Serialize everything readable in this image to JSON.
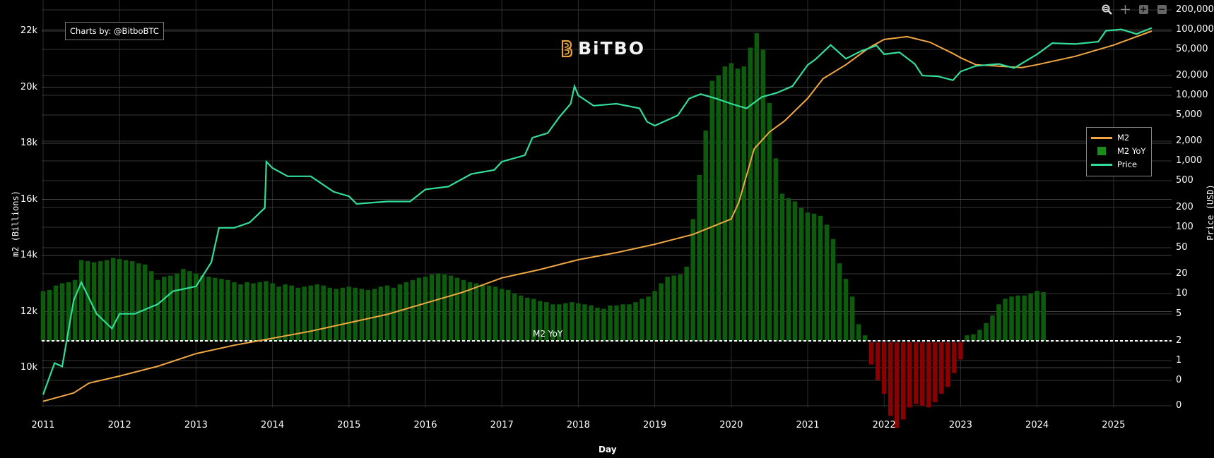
{
  "modebar": {
    "buttons": [
      {
        "name": "zoom-icon",
        "glyph": "⊕"
      },
      {
        "name": "pan-icon",
        "glyph": "✛"
      },
      {
        "name": "zoom-in-icon",
        "glyph": "+"
      },
      {
        "name": "zoom-out-icon",
        "glyph": "−"
      }
    ]
  },
  "credit": "Charts by: @BitboBTC",
  "logo": {
    "text": "BiTBO",
    "accent": "#e8a33d"
  },
  "legend": {
    "items": [
      {
        "label": "M2",
        "color": "#f0a742",
        "type": "line"
      },
      {
        "label": "M2 YoY",
        "color": "#1a8c1a",
        "type": "bar"
      },
      {
        "label": "Price",
        "color": "#33dd99",
        "type": "line"
      }
    ]
  },
  "axes": {
    "left_title": "m2 (Billions)",
    "right_title": "Price (USD)",
    "x_title": "Day"
  },
  "reference_label": "M2 YoY",
  "colors": {
    "background": "#000000",
    "grid": "#3a3a3a",
    "m2": "#f0a742",
    "price": "#33dd99",
    "yoy_pos": "#0d5c0d",
    "yoy_neg": "#8b0000",
    "dashed": "#ffffff"
  },
  "chart_data": {
    "type": "line+bar",
    "title": "",
    "xlabel": "Day",
    "ylabel_left": "m2 (Billions)",
    "ylabel_right": "Price (USD)",
    "x_ticks": [
      "2011",
      "2012",
      "2013",
      "2014",
      "2015",
      "2016",
      "2017",
      "2018",
      "2019",
      "2020",
      "2021",
      "2022",
      "2023",
      "2024",
      "2025"
    ],
    "left_ticks": [
      "10k",
      "12k",
      "14k",
      "16k",
      "18k",
      "20k",
      "22k"
    ],
    "right_ticks": [
      "0",
      "0",
      "1",
      "2",
      "5",
      "10",
      "20",
      "50",
      "100",
      "200",
      "500",
      "1,000",
      "2,000",
      "5,000",
      "10,000",
      "20,000",
      "50,000",
      "100,000",
      "200,000"
    ],
    "ylim_left": [
      8800,
      22400
    ],
    "right_scale": "log",
    "grid": true,
    "legend_position": "right-inside",
    "series": [
      {
        "name": "M2",
        "axis": "left",
        "points": [
          [
            2011.0,
            8.8
          ],
          [
            2011.4,
            9.1
          ],
          [
            2011.6,
            9.45
          ],
          [
            2012.0,
            9.7
          ],
          [
            2012.5,
            10.05
          ],
          [
            2013.0,
            10.5
          ],
          [
            2013.5,
            10.8
          ],
          [
            2014.0,
            11.05
          ],
          [
            2014.5,
            11.3
          ],
          [
            2015.0,
            11.6
          ],
          [
            2015.5,
            11.9
          ],
          [
            2016.0,
            12.3
          ],
          [
            2016.5,
            12.7
          ],
          [
            2017.0,
            13.2
          ],
          [
            2017.5,
            13.5
          ],
          [
            2018.0,
            13.85
          ],
          [
            2018.5,
            14.1
          ],
          [
            2019.0,
            14.4
          ],
          [
            2019.5,
            14.75
          ],
          [
            2020.0,
            15.3
          ],
          [
            2020.1,
            15.9
          ],
          [
            2020.3,
            17.8
          ],
          [
            2020.5,
            18.4
          ],
          [
            2020.7,
            18.8
          ],
          [
            2021.0,
            19.6
          ],
          [
            2021.2,
            20.3
          ],
          [
            2021.5,
            20.8
          ],
          [
            2021.8,
            21.4
          ],
          [
            2022.0,
            21.7
          ],
          [
            2022.3,
            21.8
          ],
          [
            2022.6,
            21.6
          ],
          [
            2022.9,
            21.2
          ],
          [
            2023.0,
            21.05
          ],
          [
            2023.2,
            20.8
          ],
          [
            2023.5,
            20.75
          ],
          [
            2023.8,
            20.7
          ],
          [
            2024.0,
            20.8
          ],
          [
            2024.5,
            21.1
          ],
          [
            2025.0,
            21.5
          ],
          [
            2025.5,
            22.0
          ]
        ]
      },
      {
        "name": "Price",
        "axis": "right",
        "points": [
          [
            2011.0,
            0.3
          ],
          [
            2011.15,
            0.9
          ],
          [
            2011.25,
            0.8
          ],
          [
            2011.4,
            8
          ],
          [
            2011.5,
            15
          ],
          [
            2011.7,
            5
          ],
          [
            2011.9,
            3
          ],
          [
            2012.0,
            5
          ],
          [
            2012.2,
            5
          ],
          [
            2012.5,
            7
          ],
          [
            2012.7,
            11
          ],
          [
            2013.0,
            13
          ],
          [
            2013.2,
            30
          ],
          [
            2013.3,
            100
          ],
          [
            2013.5,
            100
          ],
          [
            2013.7,
            120
          ],
          [
            2013.9,
            200
          ],
          [
            2013.92,
            1000
          ],
          [
            2014.0,
            800
          ],
          [
            2014.2,
            600
          ],
          [
            2014.5,
            600
          ],
          [
            2014.8,
            350
          ],
          [
            2015.0,
            300
          ],
          [
            2015.1,
            230
          ],
          [
            2015.5,
            250
          ],
          [
            2015.8,
            250
          ],
          [
            2016.0,
            380
          ],
          [
            2016.3,
            420
          ],
          [
            2016.6,
            650
          ],
          [
            2016.9,
            750
          ],
          [
            2017.0,
            1000
          ],
          [
            2017.3,
            1250
          ],
          [
            2017.4,
            2300
          ],
          [
            2017.6,
            2700
          ],
          [
            2017.75,
            4700
          ],
          [
            2017.9,
            7500
          ],
          [
            2017.95,
            13800
          ],
          [
            2018.0,
            10000
          ],
          [
            2018.2,
            7000
          ],
          [
            2018.5,
            7500
          ],
          [
            2018.8,
            6400
          ],
          [
            2018.9,
            4000
          ],
          [
            2019.0,
            3500
          ],
          [
            2019.3,
            5000
          ],
          [
            2019.45,
            9000
          ],
          [
            2019.6,
            10500
          ],
          [
            2019.8,
            9000
          ],
          [
            2020.0,
            7500
          ],
          [
            2020.2,
            6400
          ],
          [
            2020.4,
            9500
          ],
          [
            2020.6,
            11000
          ],
          [
            2020.8,
            13800
          ],
          [
            2021.0,
            29000
          ],
          [
            2021.1,
            35000
          ],
          [
            2021.3,
            58000
          ],
          [
            2021.5,
            36000
          ],
          [
            2021.7,
            47000
          ],
          [
            2021.9,
            57000
          ],
          [
            2022.0,
            42000
          ],
          [
            2022.2,
            45000
          ],
          [
            2022.4,
            30000
          ],
          [
            2022.5,
            20000
          ],
          [
            2022.7,
            19500
          ],
          [
            2022.9,
            17000
          ],
          [
            2023.0,
            23000
          ],
          [
            2023.2,
            28000
          ],
          [
            2023.5,
            30000
          ],
          [
            2023.7,
            26000
          ],
          [
            2024.0,
            42000
          ],
          [
            2024.2,
            62000
          ],
          [
            2024.5,
            60000
          ],
          [
            2024.8,
            65000
          ],
          [
            2024.9,
            95000
          ],
          [
            2025.1,
            100000
          ],
          [
            2025.3,
            85000
          ],
          [
            2025.5,
            105000
          ]
        ]
      },
      {
        "name": "M2 YoY",
        "axis": "bar",
        "note": "Monthly YoY %, positive bars green above the dashed baseline, negative 2023 bars red",
        "values_pct": [
          4.5,
          4.6,
          5,
          5.2,
          5.3,
          5.5,
          7.3,
          7.2,
          7.1,
          7.2,
          7.3,
          7.5,
          7.4,
          7.3,
          7.2,
          7.0,
          6.9,
          6.3,
          5.5,
          5.8,
          5.9,
          6.1,
          6.5,
          6.3,
          6.1,
          5.9,
          5.8,
          5.7,
          5.6,
          5.5,
          5.3,
          5.1,
          5.3,
          5.2,
          5.3,
          5.4,
          5.2,
          4.9,
          5.1,
          5.0,
          4.8,
          4.9,
          5.0,
          5.1,
          5.0,
          4.8,
          4.7,
          4.8,
          4.9,
          4.8,
          4.7,
          4.6,
          4.7,
          4.9,
          5.0,
          4.8,
          5.1,
          5.3,
          5.5,
          5.7,
          5.8,
          6.0,
          6.1,
          6.0,
          5.9,
          5.7,
          5.5,
          5.3,
          5.2,
          5.1,
          5.0,
          4.9,
          4.7,
          4.6,
          4.3,
          4.1,
          3.9,
          3.8,
          3.6,
          3.5,
          3.3,
          3.3,
          3.4,
          3.5,
          3.4,
          3.3,
          3.2,
          3.0,
          2.9,
          3.2,
          3.2,
          3.3,
          3.3,
          3.5,
          3.8,
          4.0,
          4.5,
          5.2,
          5.8,
          5.9,
          6.0,
          6.7,
          11,
          15,
          19,
          23.5,
          24,
          24.8,
          25.1,
          24.6,
          24.8,
          26.5,
          27.8,
          26.3,
          21.5,
          16.5,
          13.3,
          12.9,
          12.6,
          12.0,
          11.6,
          11.5,
          11.3,
          10.5,
          9.2,
          7.0,
          5.6,
          4.0,
          1.5,
          0.5,
          -1.3,
          -2.2,
          -3.0,
          -4.3,
          -5.0,
          -4.5,
          -3.8,
          -3.6,
          -3.7,
          -3.8,
          -3.5,
          -3.0,
          -2.6,
          -1.8,
          -1.0,
          0.5,
          0.6,
          1.0,
          1.6,
          2.3,
          3.3,
          3.8,
          4.0,
          4.1,
          4.1,
          4.3,
          4.5,
          4.4
        ]
      }
    ]
  }
}
